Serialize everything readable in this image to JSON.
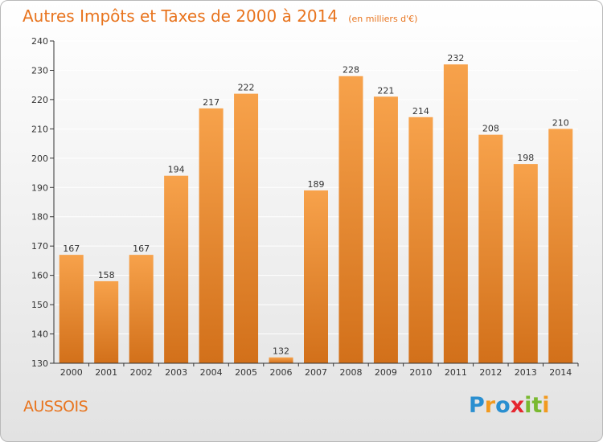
{
  "title": "Autres Impôts et Taxes de 2000 à 2014",
  "unit": "(en milliers d'€)",
  "commune": "AUSSOIS",
  "logo_text": "Proxiti",
  "colors": {
    "accent": "#e8741e",
    "bar_top": "#f7a24b",
    "bar_bottom": "#d2701a"
  },
  "chart_data": {
    "type": "bar",
    "categories": [
      "2000",
      "2001",
      "2002",
      "2003",
      "2004",
      "2005",
      "2006",
      "2007",
      "2008",
      "2009",
      "2010",
      "2011",
      "2012",
      "2013",
      "2014"
    ],
    "values": [
      167,
      158,
      167,
      194,
      217,
      222,
      132,
      189,
      228,
      221,
      214,
      232,
      208,
      198,
      210
    ],
    "ylim": [
      130,
      240
    ],
    "yticks": [
      130,
      140,
      150,
      160,
      170,
      180,
      190,
      200,
      210,
      220,
      230,
      240
    ],
    "grid": true,
    "legend": "none"
  }
}
